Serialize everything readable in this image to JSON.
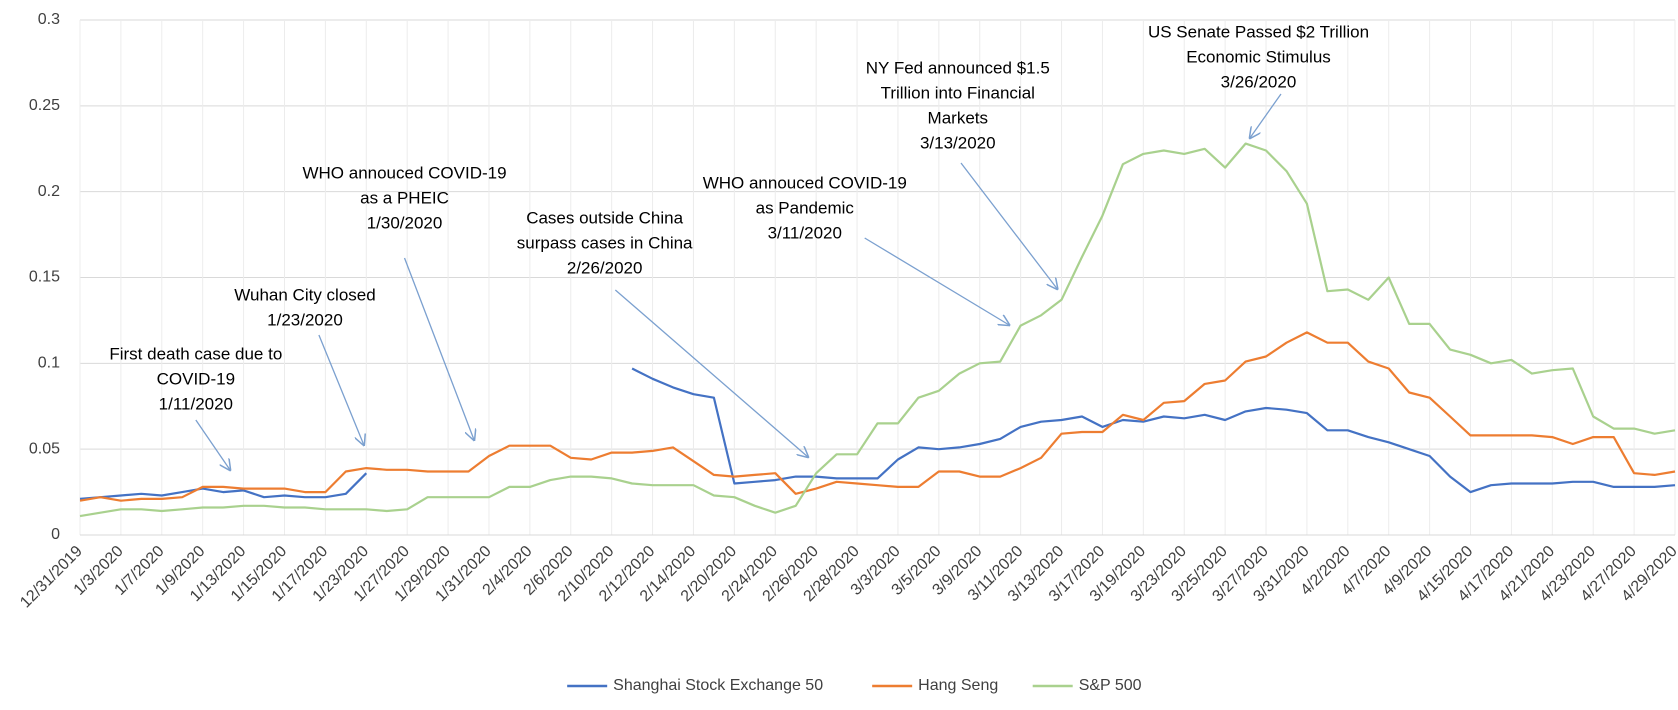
{
  "chart_data": {
    "type": "line",
    "categories": [
      "12/31/2019",
      null,
      "1/3/2020",
      null,
      "1/7/2020",
      null,
      "1/9/2020",
      null,
      "1/13/2020",
      null,
      "1/15/2020",
      null,
      "1/17/2020",
      null,
      "1/23/2020",
      null,
      "1/27/2020",
      null,
      "1/29/2020",
      null,
      "1/31/2020",
      null,
      "2/4/2020",
      null,
      "2/6/2020",
      null,
      "2/10/2020",
      null,
      "2/12/2020",
      null,
      "2/14/2020",
      null,
      "2/20/2020",
      null,
      "2/24/2020",
      null,
      "2/26/2020",
      null,
      "2/28/2020",
      null,
      "3/3/2020",
      null,
      "3/5/2020",
      null,
      "3/9/2020",
      null,
      "3/11/2020",
      null,
      "3/13/2020",
      null,
      "3/17/2020",
      null,
      "3/19/2020",
      null,
      "3/23/2020",
      null,
      "3/25/2020",
      null,
      "3/27/2020",
      null,
      "3/31/2020",
      null,
      "4/2/2020",
      null,
      "4/7/2020",
      null,
      "4/9/2020",
      null,
      "4/15/2020",
      null,
      "4/17/2020",
      null,
      "4/21/2020",
      null,
      "4/23/2020",
      null,
      "4/27/2020",
      null,
      "4/29/2020"
    ],
    "series": [
      {
        "name": "Shanghai Stock Exchange 50",
        "color": "#4472c4",
        "values": [
          0.021,
          0.022,
          0.023,
          0.024,
          0.023,
          0.025,
          0.027,
          0.025,
          0.026,
          0.022,
          0.023,
          0.022,
          0.022,
          0.024,
          0.036,
          null,
          null,
          null,
          null,
          null,
          null,
          null,
          null,
          null,
          null,
          null,
          null,
          0.097,
          0.091,
          0.086,
          0.082,
          0.08,
          0.03,
          0.031,
          0.032,
          0.034,
          0.034,
          0.033,
          0.033,
          0.033,
          0.044,
          0.051,
          0.05,
          0.051,
          0.053,
          0.056,
          0.063,
          0.066,
          0.067,
          0.069,
          0.063,
          0.067,
          0.066,
          0.069,
          0.068,
          0.07,
          0.067,
          0.072,
          0.074,
          0.073,
          0.071,
          0.061,
          0.061,
          0.057,
          0.054,
          0.05,
          0.046,
          0.034,
          0.025,
          0.029,
          0.03,
          0.03,
          0.03,
          0.031,
          0.031,
          0.028,
          0.028,
          0.028,
          0.029
        ]
      },
      {
        "name": "Hang Seng",
        "color": "#ed7d31",
        "values": [
          0.02,
          0.022,
          0.02,
          0.021,
          0.021,
          0.022,
          0.028,
          0.028,
          0.027,
          0.027,
          0.027,
          0.025,
          0.025,
          0.037,
          0.039,
          0.038,
          0.038,
          0.037,
          0.037,
          0.037,
          0.046,
          0.052,
          0.052,
          0.052,
          0.045,
          0.044,
          0.048,
          0.048,
          0.049,
          0.051,
          0.043,
          0.035,
          0.034,
          0.035,
          0.036,
          0.024,
          0.027,
          0.031,
          0.03,
          0.029,
          0.028,
          0.028,
          0.037,
          0.037,
          0.034,
          0.034,
          0.039,
          0.045,
          0.059,
          0.06,
          0.06,
          0.07,
          0.067,
          0.077,
          0.078,
          0.088,
          0.09,
          0.101,
          0.104,
          0.112,
          0.118,
          0.112,
          0.112,
          0.101,
          0.097,
          0.083,
          0.08,
          0.069,
          0.058,
          0.058,
          0.058,
          0.058,
          0.057,
          0.053,
          0.057,
          0.057,
          0.036,
          0.035,
          0.037
        ]
      },
      {
        "name": "S&P 500",
        "color": "#a9d18e",
        "values": [
          0.011,
          0.013,
          0.015,
          0.015,
          0.014,
          0.015,
          0.016,
          0.016,
          0.017,
          0.017,
          0.016,
          0.016,
          0.015,
          0.015,
          0.015,
          0.014,
          0.015,
          0.022,
          0.022,
          0.022,
          0.022,
          0.028,
          0.028,
          0.032,
          0.034,
          0.034,
          0.033,
          0.03,
          0.029,
          0.029,
          0.029,
          0.023,
          0.022,
          0.017,
          0.013,
          0.017,
          0.036,
          0.047,
          0.047,
          0.065,
          0.065,
          0.08,
          0.084,
          0.094,
          0.1,
          0.101,
          0.122,
          0.128,
          0.137,
          0.162,
          0.186,
          0.216,
          0.222,
          0.224,
          0.222,
          0.225,
          0.214,
          0.228,
          0.224,
          0.212,
          0.193,
          0.142,
          0.143,
          0.137,
          0.15,
          0.123,
          0.123,
          0.108,
          0.105,
          0.1,
          0.102,
          0.094,
          0.096,
          0.097,
          0.069,
          0.062,
          0.062,
          0.059,
          0.061
        ]
      }
    ],
    "ylim": [
      0,
      0.3
    ],
    "yticks": [
      0,
      0.05,
      0.1,
      0.15,
      0.2,
      0.25,
      0.3
    ],
    "grid": true,
    "legend": "bottom",
    "annotations": [
      {
        "text": [
          "First death case due to",
          "COVID-19",
          "1/11/2020"
        ]
      },
      {
        "text": [
          "Wuhan City closed",
          "1/23/2020"
        ]
      },
      {
        "text": [
          "WHO annouced COVID-19",
          "as a PHEIC",
          "1/30/2020"
        ]
      },
      {
        "text": [
          "Cases outside China",
          "surpass cases in China",
          "2/26/2020"
        ]
      },
      {
        "text": [
          "WHO annouced COVID-19",
          "as Pandemic",
          "3/11/2020"
        ]
      },
      {
        "text": [
          "NY Fed announced $1.5",
          "Trillion into Financial",
          "Markets",
          "3/13/2020"
        ]
      },
      {
        "text": [
          "US Senate Passed $2 Trillion",
          "Economic Stimulus",
          "3/26/2020"
        ]
      }
    ]
  }
}
